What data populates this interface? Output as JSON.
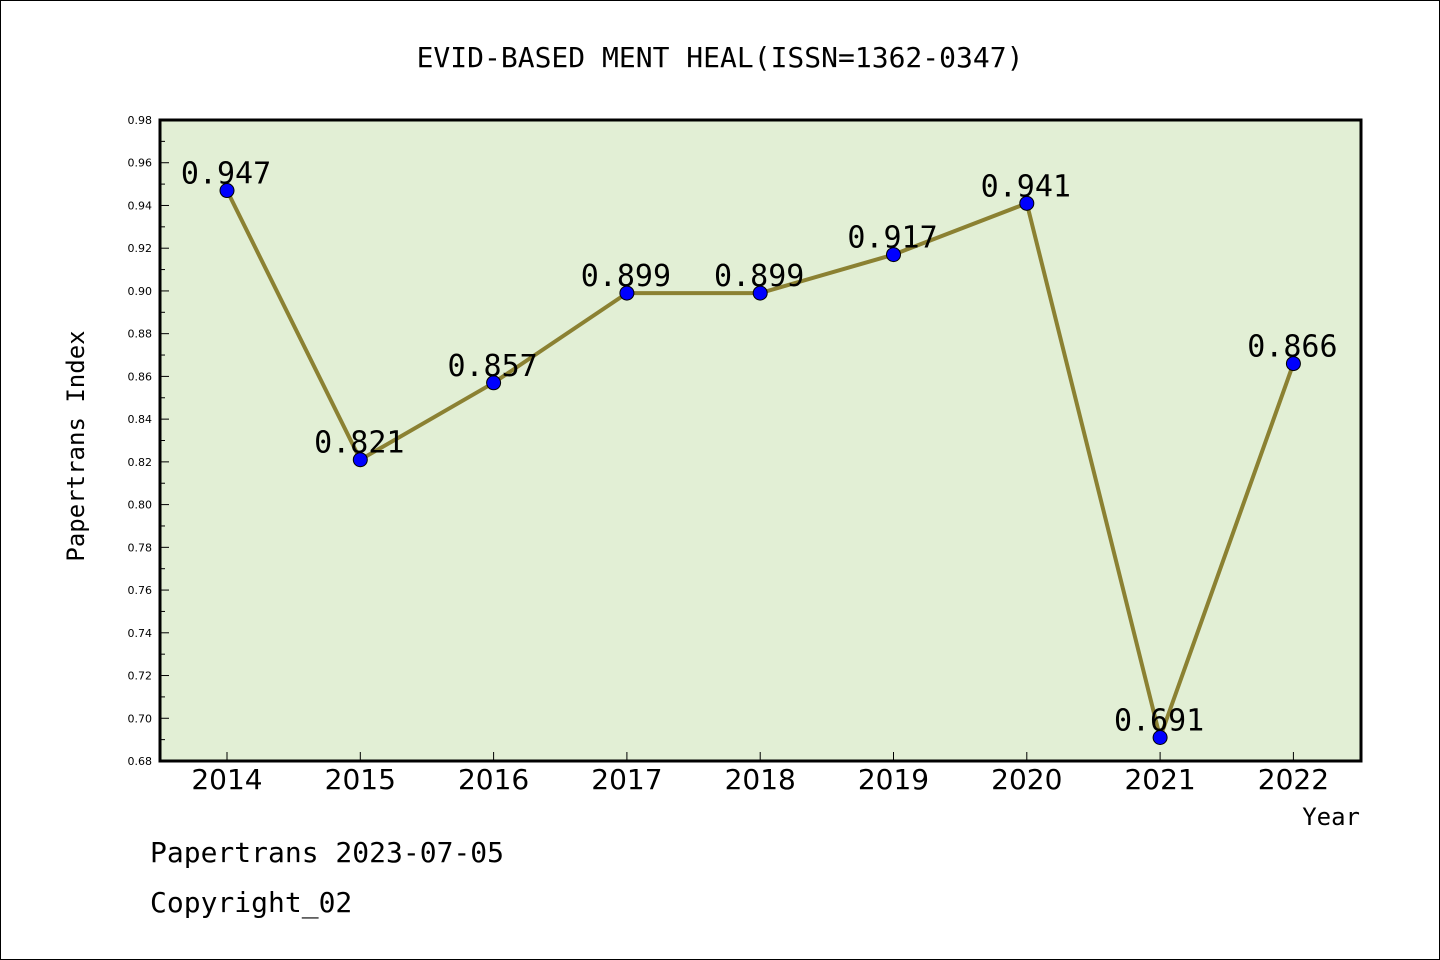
{
  "chart_data": {
    "type": "line",
    "title": "EVID-BASED MENT HEAL(ISSN=1362-0347)",
    "xlabel": "Year",
    "ylabel": "Papertrans Index",
    "categories": [
      "2014",
      "2015",
      "2016",
      "2017",
      "2018",
      "2019",
      "2020",
      "2021",
      "2022"
    ],
    "values": [
      0.947,
      0.821,
      0.857,
      0.899,
      0.899,
      0.917,
      0.941,
      0.691,
      0.866
    ],
    "data_labels": [
      "0.947",
      "0.821",
      "0.857",
      "0.899",
      "0.899",
      "0.917",
      "0.941",
      "0.691",
      "0.866"
    ],
    "ylim": [
      0.68,
      0.98
    ],
    "yticks": [
      "0.68",
      "0.70",
      "0.72",
      "0.74",
      "0.76",
      "0.78",
      "0.80",
      "0.82",
      "0.84",
      "0.86",
      "0.88",
      "0.90",
      "0.92",
      "0.94",
      "0.96",
      "0.98"
    ],
    "grid": false,
    "legend": "none",
    "colors": {
      "plot_background": "#e2efd5",
      "line": "#8b8132",
      "marker": "#0000ff"
    }
  },
  "footer": {
    "date_text": "Papertrans 2023-07-05",
    "copyright_text": "Copyright_02"
  }
}
